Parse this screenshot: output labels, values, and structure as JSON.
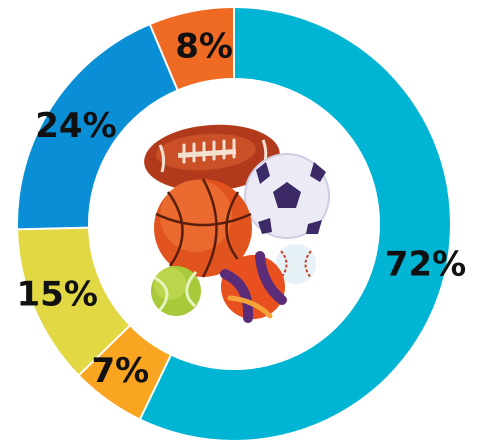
{
  "chart_data": {
    "type": "pie",
    "donut": true,
    "title": "",
    "start_angle_deg": 0,
    "direction": "clockwise",
    "slices": [
      {
        "label": "72%",
        "value": 72,
        "color": "#00b4d4"
      },
      {
        "label": "7%",
        "value": 7,
        "color": "#f9a521"
      },
      {
        "label": "15%",
        "value": 15,
        "color": "#e2d844"
      },
      {
        "label": "24%",
        "value": 24,
        "color": "#0a8fd6"
      },
      {
        "label": "8%",
        "value": 8,
        "color": "#ef6a23"
      }
    ],
    "center_image": "sports-balls-illustration",
    "legend": "none"
  }
}
